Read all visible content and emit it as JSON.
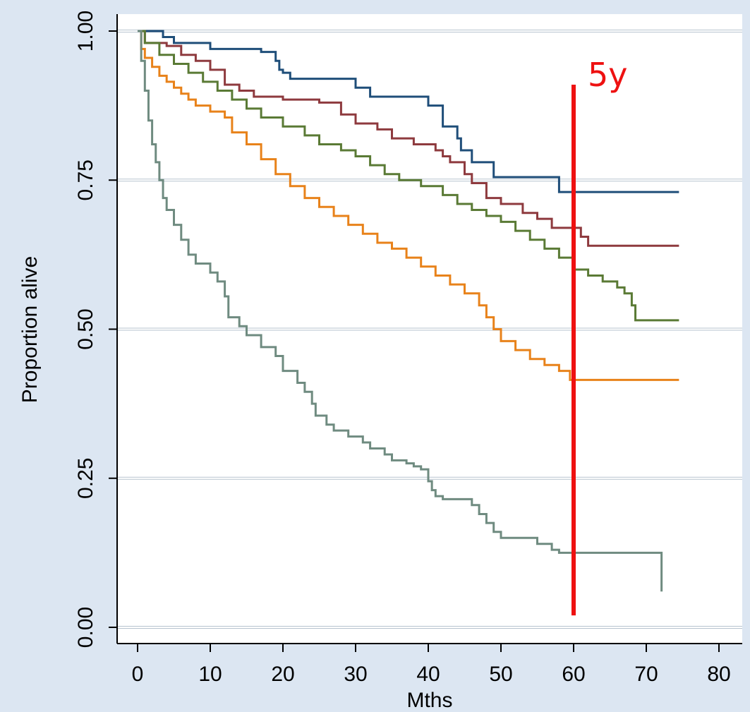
{
  "chart_data": {
    "type": "line",
    "title": "",
    "xlabel": "Mths",
    "ylabel": "Proportion alive",
    "xlim": [
      0,
      80
    ],
    "ylim": [
      0,
      1
    ],
    "x_ticks": [
      "0",
      "10",
      "20",
      "30",
      "40",
      "50",
      "60",
      "70",
      "80"
    ],
    "y_ticks": [
      "0.00",
      "0.25",
      "0.50",
      "0.75",
      "1.00"
    ],
    "grid": "horizontal",
    "step": true,
    "annotations": [
      {
        "type": "vline",
        "x": 60,
        "y_range": [
          0.02,
          0.91
        ],
        "label": "5y",
        "color": "#ee1111"
      }
    ],
    "series": [
      {
        "color": "#1f4e79",
        "points": [
          [
            0,
            1.0
          ],
          [
            3.5,
            0.99
          ],
          [
            5,
            0.98
          ],
          [
            10,
            0.97
          ],
          [
            17,
            0.965
          ],
          [
            19,
            0.95
          ],
          [
            19.5,
            0.935
          ],
          [
            20,
            0.93
          ],
          [
            21,
            0.92
          ],
          [
            30,
            0.905
          ],
          [
            32,
            0.89
          ],
          [
            40,
            0.875
          ],
          [
            42,
            0.84
          ],
          [
            44,
            0.82
          ],
          [
            44.5,
            0.8
          ],
          [
            46,
            0.78
          ],
          [
            49,
            0.755
          ],
          [
            58,
            0.73
          ],
          [
            74.5,
            0.73
          ]
        ]
      },
      {
        "color": "#8e3a3e",
        "points": [
          [
            0,
            1.0
          ],
          [
            1,
            0.98
          ],
          [
            4,
            0.975
          ],
          [
            6,
            0.96
          ],
          [
            8,
            0.95
          ],
          [
            10,
            0.935
          ],
          [
            12,
            0.91
          ],
          [
            14,
            0.9
          ],
          [
            16,
            0.89
          ],
          [
            20,
            0.885
          ],
          [
            25,
            0.88
          ],
          [
            28,
            0.86
          ],
          [
            30,
            0.845
          ],
          [
            33,
            0.835
          ],
          [
            35,
            0.82
          ],
          [
            38,
            0.81
          ],
          [
            41,
            0.8
          ],
          [
            42,
            0.79
          ],
          [
            43,
            0.78
          ],
          [
            45,
            0.76
          ],
          [
            46,
            0.745
          ],
          [
            48,
            0.72
          ],
          [
            50,
            0.71
          ],
          [
            53,
            0.695
          ],
          [
            55,
            0.685
          ],
          [
            57,
            0.67
          ],
          [
            60,
            0.67
          ],
          [
            61,
            0.655
          ],
          [
            62,
            0.64
          ],
          [
            74.5,
            0.64
          ]
        ]
      },
      {
        "color": "#5a7a35",
        "points": [
          [
            0,
            1.0
          ],
          [
            1,
            0.98
          ],
          [
            3,
            0.96
          ],
          [
            5,
            0.945
          ],
          [
            7,
            0.93
          ],
          [
            9,
            0.915
          ],
          [
            11,
            0.9
          ],
          [
            13,
            0.885
          ],
          [
            15,
            0.87
          ],
          [
            17,
            0.855
          ],
          [
            20,
            0.84
          ],
          [
            23,
            0.825
          ],
          [
            25,
            0.81
          ],
          [
            28,
            0.8
          ],
          [
            30,
            0.79
          ],
          [
            32,
            0.775
          ],
          [
            34,
            0.76
          ],
          [
            36,
            0.75
          ],
          [
            39,
            0.74
          ],
          [
            42,
            0.725
          ],
          [
            44,
            0.71
          ],
          [
            46,
            0.7
          ],
          [
            48,
            0.69
          ],
          [
            50,
            0.68
          ],
          [
            52,
            0.665
          ],
          [
            54,
            0.65
          ],
          [
            56,
            0.635
          ],
          [
            58,
            0.62
          ],
          [
            60,
            0.6
          ],
          [
            62,
            0.59
          ],
          [
            64,
            0.58
          ],
          [
            66,
            0.57
          ],
          [
            67,
            0.56
          ],
          [
            68,
            0.54
          ],
          [
            68.5,
            0.515
          ],
          [
            74.5,
            0.515
          ]
        ]
      },
      {
        "color": "#e8821a",
        "points": [
          [
            0,
            1.0
          ],
          [
            0.5,
            0.97
          ],
          [
            1,
            0.955
          ],
          [
            2,
            0.94
          ],
          [
            3,
            0.925
          ],
          [
            4,
            0.915
          ],
          [
            5,
            0.905
          ],
          [
            6,
            0.895
          ],
          [
            7,
            0.885
          ],
          [
            8,
            0.875
          ],
          [
            10,
            0.865
          ],
          [
            12,
            0.855
          ],
          [
            13,
            0.83
          ],
          [
            15,
            0.81
          ],
          [
            17,
            0.785
          ],
          [
            19,
            0.76
          ],
          [
            21,
            0.74
          ],
          [
            23,
            0.72
          ],
          [
            25,
            0.705
          ],
          [
            27,
            0.69
          ],
          [
            29,
            0.675
          ],
          [
            31,
            0.66
          ],
          [
            33,
            0.645
          ],
          [
            35,
            0.635
          ],
          [
            37,
            0.62
          ],
          [
            39,
            0.605
          ],
          [
            41,
            0.59
          ],
          [
            43,
            0.575
          ],
          [
            45,
            0.56
          ],
          [
            47,
            0.54
          ],
          [
            48,
            0.52
          ],
          [
            49,
            0.5
          ],
          [
            50,
            0.48
          ],
          [
            52,
            0.465
          ],
          [
            54,
            0.45
          ],
          [
            56,
            0.44
          ],
          [
            58,
            0.43
          ],
          [
            59.5,
            0.415
          ],
          [
            74.5,
            0.415
          ]
        ]
      },
      {
        "color": "#6f8b80",
        "points": [
          [
            0,
            1.0
          ],
          [
            0.5,
            0.95
          ],
          [
            1,
            0.9
          ],
          [
            1.5,
            0.85
          ],
          [
            2,
            0.81
          ],
          [
            2.5,
            0.78
          ],
          [
            3,
            0.75
          ],
          [
            3.5,
            0.72
          ],
          [
            4,
            0.7
          ],
          [
            5,
            0.675
          ],
          [
            6,
            0.65
          ],
          [
            7,
            0.625
          ],
          [
            8,
            0.61
          ],
          [
            10,
            0.595
          ],
          [
            11,
            0.58
          ],
          [
            12,
            0.555
          ],
          [
            12.5,
            0.52
          ],
          [
            14,
            0.505
          ],
          [
            15,
            0.49
          ],
          [
            17,
            0.47
          ],
          [
            19,
            0.455
          ],
          [
            20,
            0.43
          ],
          [
            22,
            0.41
          ],
          [
            23,
            0.395
          ],
          [
            24,
            0.375
          ],
          [
            24.5,
            0.355
          ],
          [
            26,
            0.34
          ],
          [
            27,
            0.33
          ],
          [
            29,
            0.32
          ],
          [
            31,
            0.31
          ],
          [
            32,
            0.3
          ],
          [
            34,
            0.29
          ],
          [
            35,
            0.28
          ],
          [
            37,
            0.275
          ],
          [
            38,
            0.27
          ],
          [
            39,
            0.265
          ],
          [
            40,
            0.245
          ],
          [
            40.5,
            0.23
          ],
          [
            41,
            0.22
          ],
          [
            42,
            0.215
          ],
          [
            46,
            0.205
          ],
          [
            47,
            0.19
          ],
          [
            48,
            0.175
          ],
          [
            49,
            0.16
          ],
          [
            50,
            0.15
          ],
          [
            55,
            0.14
          ],
          [
            57,
            0.13
          ],
          [
            58,
            0.125
          ],
          [
            72,
            0.125
          ],
          [
            72.1,
            0.06
          ]
        ]
      }
    ]
  }
}
